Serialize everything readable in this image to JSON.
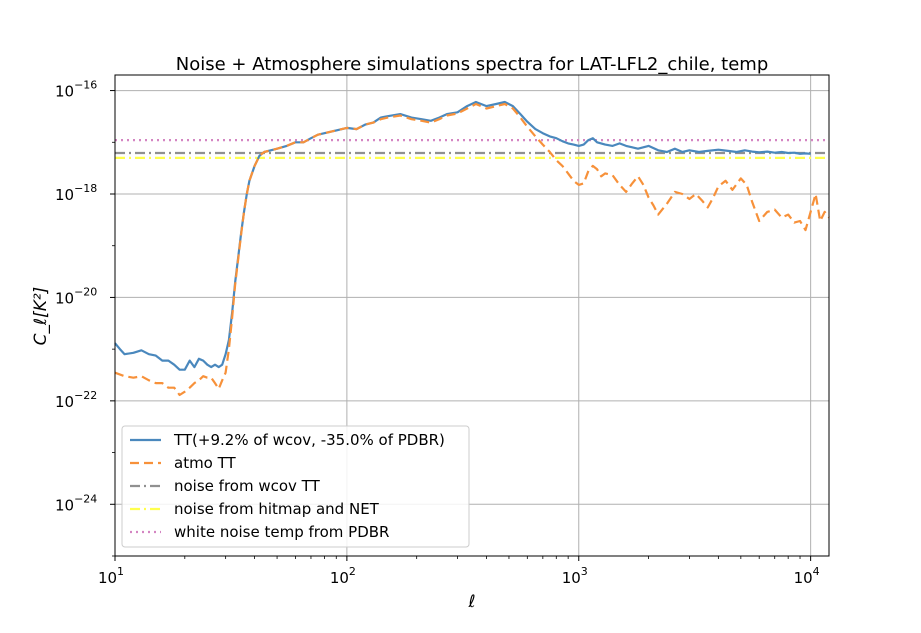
{
  "chart_data": {
    "type": "line",
    "title": "Noise + Atmosphere simulations spectra for LAT-LFL2_chile, temp",
    "xlabel": "ℓ",
    "ylabel": "C_ℓ[K²]",
    "xscale": "log",
    "yscale": "log",
    "xlim": [
      10,
      12000
    ],
    "ylim": [
      1e-25,
      2e-16
    ],
    "grid": true,
    "legend_position": "lower-left",
    "x_ticks": [
      {
        "base": "10",
        "exp": "1",
        "value": 10
      },
      {
        "base": "10",
        "exp": "2",
        "value": 100
      },
      {
        "base": "10",
        "exp": "3",
        "value": 1000
      },
      {
        "base": "10",
        "exp": "4",
        "value": 10000
      }
    ],
    "y_ticks": [
      {
        "base": "10",
        "exp": "−16",
        "value": 1e-16
      },
      {
        "base": "10",
        "exp": "−18",
        "value": 1e-18
      },
      {
        "base": "10",
        "exp": "−20",
        "value": 1e-20
      },
      {
        "base": "10",
        "exp": "−22",
        "value": 1e-22
      },
      {
        "base": "10",
        "exp": "−24",
        "value": 1e-24
      }
    ],
    "series": [
      {
        "name": "TT(+9.2% of wcov, -35.0% of PDBR)",
        "color": "#4a88bd",
        "style": "solid",
        "x": [
          10,
          10.5,
          11,
          12,
          13,
          14,
          15,
          16,
          17,
          18,
          19,
          20,
          21,
          22,
          23,
          24,
          25,
          26,
          27,
          28,
          29,
          30,
          31,
          32,
          33,
          34,
          35,
          36,
          37,
          38,
          40,
          42,
          44,
          47,
          50,
          55,
          60,
          65,
          70,
          75,
          80,
          90,
          100,
          110,
          120,
          130,
          140,
          150,
          170,
          190,
          210,
          230,
          250,
          270,
          300,
          330,
          360,
          400,
          440,
          480,
          520,
          560,
          600,
          650,
          700,
          750,
          800,
          850,
          900,
          950,
          1000,
          1050,
          1100,
          1150,
          1200,
          1300,
          1400,
          1500,
          1600,
          1700,
          1800,
          2000,
          2200,
          2400,
          2600,
          2800,
          3000,
          3300,
          3600,
          4000,
          4400,
          4800,
          5200,
          5600,
          6000,
          6500,
          7000,
          7500,
          8000,
          8500,
          9000,
          9500,
          10000
        ],
        "y": [
          1.3e-21,
          1e-21,
          8e-22,
          8.5e-22,
          9.5e-22,
          8e-22,
          7.5e-22,
          6e-22,
          6e-22,
          5e-22,
          4e-22,
          4e-22,
          6e-22,
          4.5e-22,
          6.5e-22,
          6e-22,
          5e-22,
          4.5e-22,
          5e-22,
          4.5e-22,
          5e-22,
          8e-22,
          1.5e-21,
          5e-21,
          2e-20,
          6e-20,
          1.8e-19,
          4.5e-19,
          1e-18,
          1.8e-18,
          3.5e-18,
          5.5e-18,
          6.5e-18,
          7e-18,
          7.5e-18,
          8.5e-18,
          1e-17,
          1e-17,
          1.2e-17,
          1.4e-17,
          1.5e-17,
          1.7e-17,
          1.9e-17,
          1.8e-17,
          2.2e-17,
          2.4e-17,
          3e-17,
          3.2e-17,
          3.5e-17,
          3e-17,
          2.8e-17,
          2.6e-17,
          3e-17,
          3.5e-17,
          3.8e-17,
          5e-17,
          6e-17,
          5e-17,
          5.5e-17,
          6e-17,
          5e-17,
          3.5e-17,
          2.5e-17,
          1.8e-17,
          1.5e-17,
          1.3e-17,
          1.2e-17,
          1.05e-17,
          9.5e-18,
          9e-18,
          8.5e-18,
          9e-18,
          1.1e-17,
          1.2e-17,
          1e-17,
          9e-18,
          8.5e-18,
          9.5e-18,
          8.5e-18,
          8e-18,
          7.5e-18,
          8.5e-18,
          7e-18,
          6.5e-18,
          7.5e-18,
          6.5e-18,
          7e-18,
          6.5e-18,
          6.8e-18,
          7.2e-18,
          6.8e-18,
          6.5e-18,
          7e-18,
          6.6e-18,
          6.4e-18,
          6.6e-18,
          6.3e-18,
          6.5e-18,
          6.2e-18,
          6.3e-18,
          6e-18,
          6.1e-18,
          6e-18
        ]
      },
      {
        "name": "atmo TT",
        "color": "#f7913a",
        "style": "dashed",
        "x": [
          10,
          11,
          12,
          13,
          14,
          15,
          16,
          17,
          18,
          19,
          20,
          21,
          22,
          23,
          24,
          25,
          26,
          27,
          28,
          29,
          30,
          31,
          32,
          33,
          34,
          35,
          36,
          37,
          38,
          40,
          42,
          44,
          47,
          50,
          55,
          60,
          65,
          70,
          75,
          80,
          90,
          100,
          110,
          120,
          130,
          140,
          150,
          170,
          190,
          210,
          230,
          250,
          270,
          300,
          330,
          360,
          400,
          440,
          480,
          520,
          560,
          600,
          650,
          700,
          750,
          800,
          850,
          900,
          950,
          1000,
          1050,
          1100,
          1150,
          1200,
          1250,
          1300,
          1400,
          1500,
          1600,
          1700,
          1800,
          1900,
          2000,
          2100,
          2200,
          2400,
          2600,
          2800,
          3000,
          3200,
          3400,
          3600,
          3800,
          4000,
          4300,
          4600,
          5000,
          5300,
          5600,
          6000,
          6500,
          7000,
          7500,
          8000,
          8500,
          9000,
          9500,
          10000,
          10500,
          11000,
          11500,
          12000
        ],
        "y": [
          3.5e-22,
          3e-22,
          2.8e-22,
          3e-22,
          2.5e-22,
          2.2e-22,
          2.2e-22,
          1.8e-22,
          1.8e-22,
          1.3e-22,
          1.5e-22,
          1.8e-22,
          2.2e-22,
          2.5e-22,
          3e-22,
          2.8e-22,
          2.8e-22,
          2.2e-22,
          1.7e-22,
          2.5e-22,
          3.5e-22,
          1e-21,
          4e-21,
          1.8e-20,
          5.5e-20,
          1.7e-19,
          4.5e-19,
          1e-18,
          1.8e-18,
          3.5e-18,
          5.5e-18,
          6.5e-18,
          7e-18,
          7.5e-18,
          8.5e-18,
          1e-17,
          1e-17,
          1.2e-17,
          1.4e-17,
          1.5e-17,
          1.7e-17,
          1.9e-17,
          1.8e-17,
          2.2e-17,
          2.4e-17,
          2.8e-17,
          3e-17,
          3.3e-17,
          2.8e-17,
          2.6e-17,
          2.4e-17,
          2.8e-17,
          3.3e-17,
          3.6e-17,
          4.5e-17,
          5.5e-17,
          4.5e-17,
          5e-17,
          5.5e-17,
          4.5e-17,
          3e-17,
          2e-17,
          1.3e-17,
          9e-18,
          6.5e-18,
          4.5e-18,
          3.5e-18,
          2.5e-18,
          1.8e-18,
          1.5e-18,
          1.6e-18,
          2.8e-18,
          3.5e-18,
          3e-18,
          2.2e-18,
          2.5e-18,
          2.3e-18,
          1.5e-18,
          1.1e-18,
          1.6e-18,
          2.2e-18,
          1.5e-18,
          8.5e-19,
          6e-19,
          4e-19,
          6.5e-19,
          1.1e-18,
          1e-18,
          8e-19,
          1e-18,
          7.5e-19,
          5.5e-19,
          8.5e-19,
          1.4e-18,
          1.8e-18,
          1.2e-18,
          2e-18,
          1.5e-18,
          7e-19,
          3e-19,
          4.5e-19,
          5e-19,
          3.5e-19,
          4e-19,
          2.8e-19,
          3e-19,
          2e-19,
          4.5e-19,
          1e-18,
          3e-19,
          4.5e-19,
          3.5e-19
        ]
      },
      {
        "name": "noise from wcov TT",
        "color": "#909090",
        "style": "dashdot",
        "constant": 6.2e-18
      },
      {
        "name": "noise from hitmap and NET",
        "color": "#ffff4d",
        "style": "dashdot",
        "constant": 5e-18
      },
      {
        "name": "white noise temp from PDBR",
        "color": "#d485c2",
        "style": "dotted",
        "constant": 1.1e-17
      }
    ]
  }
}
